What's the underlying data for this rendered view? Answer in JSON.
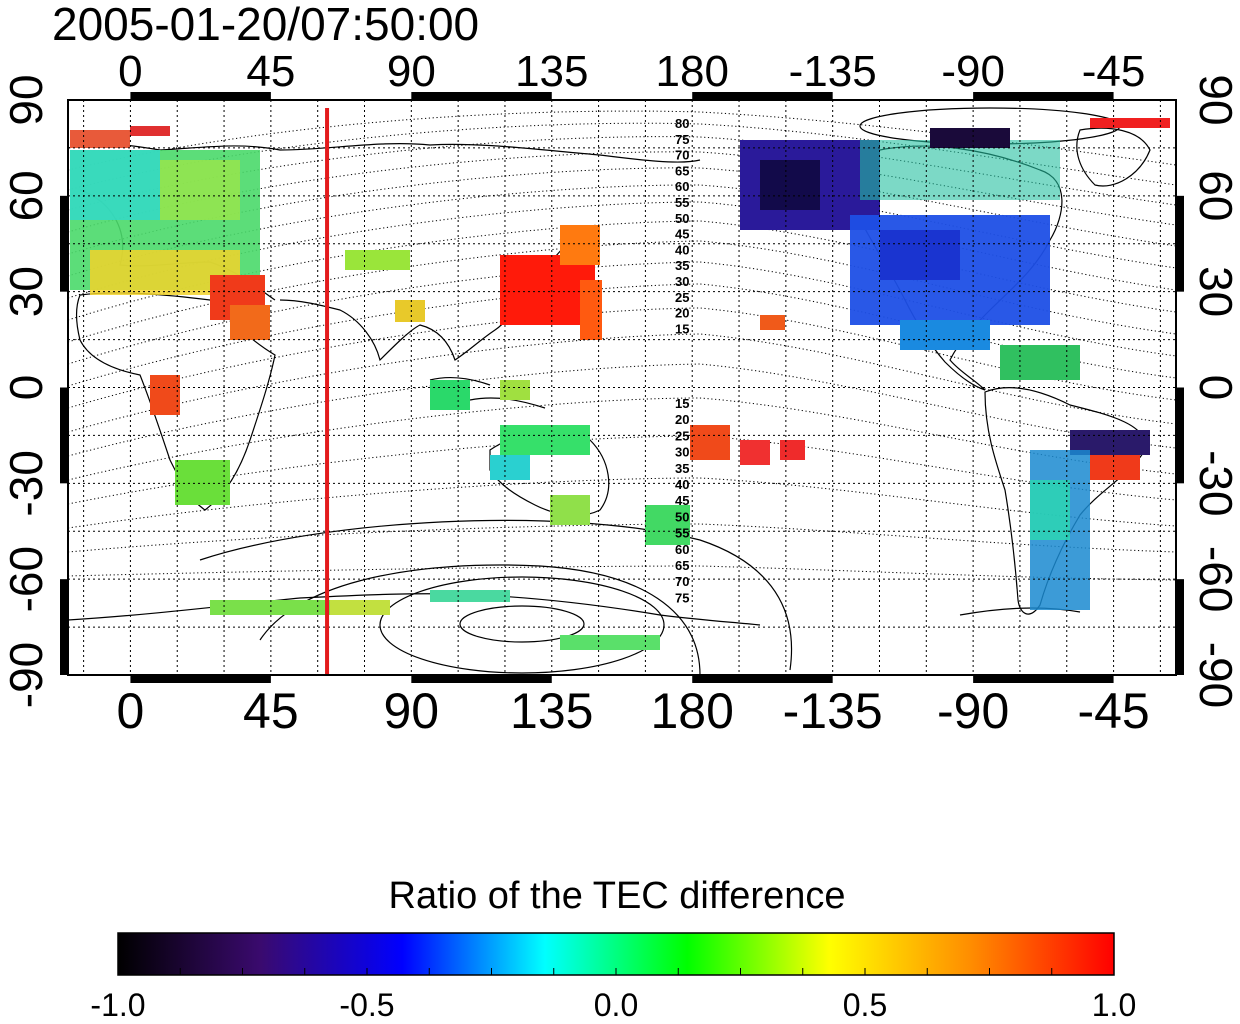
{
  "title": "2005-01-20/07:50:00",
  "map": {
    "lon_ticks": [
      {
        "value": 0,
        "label": "0"
      },
      {
        "value": 45,
        "label": "45"
      },
      {
        "value": 90,
        "label": "90"
      },
      {
        "value": 135,
        "label": "135"
      },
      {
        "value": 180,
        "label": "180"
      },
      {
        "value": 225,
        "label": "-135"
      },
      {
        "value": 270,
        "label": "-90"
      },
      {
        "value": 315,
        "label": "-45"
      }
    ],
    "lat_ticks": [
      {
        "value": 90,
        "label": "90"
      },
      {
        "value": 60,
        "label": "60"
      },
      {
        "value": 30,
        "label": "30"
      },
      {
        "value": 0,
        "label": "0"
      },
      {
        "value": -30,
        "label": "-30"
      },
      {
        "value": -60,
        "label": "-60"
      },
      {
        "value": -90,
        "label": "-90"
      }
    ],
    "lon_range": [
      -20,
      335
    ],
    "lat_range": [
      -90,
      90
    ],
    "grid": true,
    "marker_longitude": 63,
    "marker_color": "#e31a1c",
    "contour_labels_north": [
      "80",
      "75",
      "70",
      "65",
      "60",
      "55",
      "50",
      "45",
      "40",
      "35",
      "30",
      "25",
      "20",
      "15"
    ],
    "contour_labels_south": [
      "15",
      "20",
      "25",
      "30",
      "35",
      "40",
      "45",
      "50",
      "55",
      "60",
      "65",
      "70",
      "75"
    ]
  },
  "colorbar": {
    "title": "Ratio of the TEC difference",
    "ticks": [
      "-1.0",
      "-0.5",
      "0.0",
      "0.5",
      "1.0"
    ],
    "range": [
      -1,
      1
    ],
    "stops": [
      "#000000",
      "#3a0a6e",
      "#0000ff",
      "#00ffff",
      "#00ff00",
      "#ffff00",
      "#ff8c00",
      "#ff0000"
    ]
  }
}
